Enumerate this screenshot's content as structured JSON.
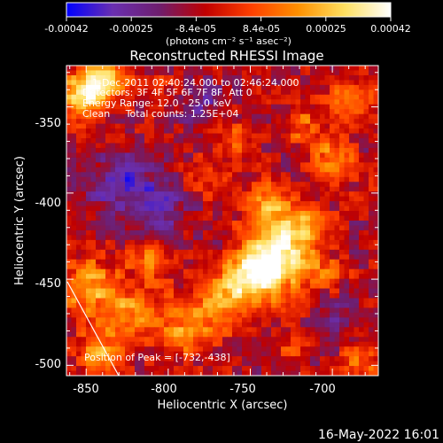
{
  "colorbar": {
    "ticks": [
      "-0.00042",
      "-0.00025",
      "-8.4e-05",
      "8.4e-05",
      "0.00025",
      "0.00042"
    ],
    "units": "(photons cm⁻² s⁻¹ asec⁻²)",
    "stops": [
      "#0000ff",
      "#6a2fb0",
      "#6e1e6e",
      "#c00000",
      "#ff4000",
      "#ff9000",
      "#ffe060",
      "#ffffff"
    ]
  },
  "annotations": {
    "line1": "1-Dec-2011 02:40:24.000 to 02:46:24.000",
    "line2": "Detectors: 3F 4F 5F 6F 7F 8F, Att 0",
    "line3": "Energy Range: 12.0 - 25.0 keV",
    "line4": "Clean     Total counts: 1.25E+04",
    "peak": "Position of Peak = [-732,-438]"
  },
  "footer": {
    "date": "16-May-2022 16:01"
  },
  "chart_data": {
    "type": "heatmap",
    "title": "Reconstructed RHESSI Image",
    "xlabel": "Heliocentric X (arcsec)",
    "ylabel": "Heliocentric Y (arcsec)",
    "xlim": [
      -862,
      -672
    ],
    "ylim": [
      -506,
      -326
    ],
    "x_ticks": [
      -850,
      -800,
      -750,
      -700
    ],
    "y_ticks": [
      -350,
      -400,
      -450,
      -500
    ],
    "color_range": [
      -0.00042,
      0.00042
    ],
    "peak_position": [
      -732,
      -438
    ],
    "hotspots": [
      {
        "x": -733,
        "y": -438,
        "value": 0.00042,
        "spread": 14
      },
      {
        "x": -748,
        "y": -447,
        "value": 0.00034,
        "spread": 11
      },
      {
        "x": -765,
        "y": -462,
        "value": 0.0003,
        "spread": 11
      },
      {
        "x": -790,
        "y": -478,
        "value": 0.00024,
        "spread": 12
      },
      {
        "x": -853,
        "y": -343,
        "value": 0.0004,
        "spread": 10
      },
      {
        "x": -838,
        "y": -335,
        "value": 0.0003,
        "spread": 9
      },
      {
        "x": -848,
        "y": -455,
        "value": 0.0003,
        "spread": 12
      },
      {
        "x": -822,
        "y": -470,
        "value": 0.00026,
        "spread": 10
      },
      {
        "x": -842,
        "y": -493,
        "value": 0.00028,
        "spread": 10
      },
      {
        "x": -810,
        "y": -438,
        "value": 0.00022,
        "spread": 9
      },
      {
        "x": -740,
        "y": -408,
        "value": 0.00026,
        "spread": 10
      },
      {
        "x": -718,
        "y": -420,
        "value": 0.00022,
        "spread": 10
      },
      {
        "x": -700,
        "y": -380,
        "value": 0.00026,
        "spread": 9
      },
      {
        "x": -690,
        "y": -345,
        "value": 0.00024,
        "spread": 9
      },
      {
        "x": -718,
        "y": -360,
        "value": 0.00018,
        "spread": 8
      },
      {
        "x": -760,
        "y": -370,
        "value": 0.00016,
        "spread": 8
      },
      {
        "x": -778,
        "y": -392,
        "value": 0.00014,
        "spread": 8
      },
      {
        "x": -702,
        "y": -448,
        "value": 0.00016,
        "spread": 8
      },
      {
        "x": -682,
        "y": -498,
        "value": 0.0002,
        "spread": 8
      },
      {
        "x": -725,
        "y": -490,
        "value": 0.00012,
        "spread": 8
      },
      {
        "x": -800,
        "y": -340,
        "value": 0.0001,
        "spread": 7
      },
      {
        "x": -830,
        "y": -395,
        "value": -0.00022,
        "spread": 13
      },
      {
        "x": -805,
        "y": -410,
        "value": -0.00018,
        "spread": 12
      },
      {
        "x": -782,
        "y": -348,
        "value": -0.00016,
        "spread": 10
      },
      {
        "x": -698,
        "y": -470,
        "value": -0.00012,
        "spread": 10
      }
    ]
  }
}
